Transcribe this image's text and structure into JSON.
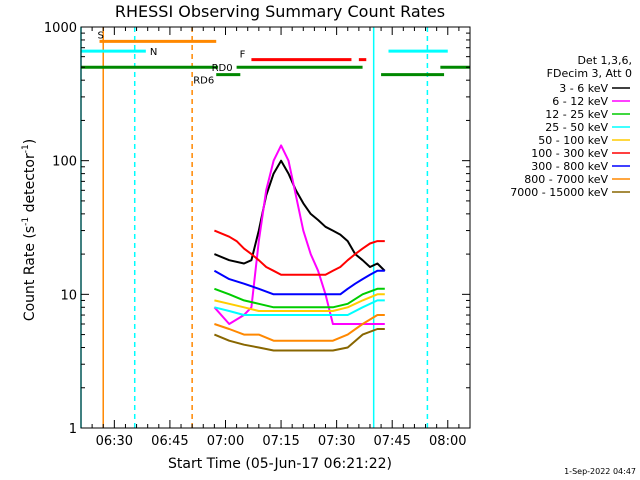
{
  "chart_data": {
    "type": "line",
    "title": "RHESSI Observing Summary Count Rates",
    "xlabel": "Start Time (05-Jun-17 06:21:22)",
    "ylabel_main": "Count Rate (s",
    "ylabel_sup1": "-1",
    "ylabel_mid": " detector",
    "ylabel_sup2": "-1",
    "ylabel_end": ")",
    "ylog": true,
    "x_range_min": [
      0,
      105
    ],
    "ylim": [
      1,
      1000
    ],
    "x_ticks": [
      {
        "label": "06:30",
        "min": 9
      },
      {
        "label": "06:45",
        "min": 24
      },
      {
        "label": "07:00",
        "min": 39
      },
      {
        "label": "07:15",
        "min": 54
      },
      {
        "label": "07:30",
        "min": 69
      },
      {
        "label": "07:45",
        "min": 84
      },
      {
        "label": "08:00",
        "min": 99
      }
    ],
    "y_ticks": [
      {
        "label": "1",
        "value": 1
      },
      {
        "label": "10",
        "value": 10
      },
      {
        "label": "100",
        "value": 100
      },
      {
        "label": "1000",
        "value": 1000
      }
    ],
    "legend_header": [
      "Det 1,3,6,",
      "FDecim 3, Att 0"
    ],
    "legend_position": "right",
    "series": [
      {
        "name": "3 - 6 keV",
        "color": "#000000",
        "values": [
          [
            36,
            20
          ],
          [
            40,
            18
          ],
          [
            44,
            17
          ],
          [
            46,
            18
          ],
          [
            48,
            30
          ],
          [
            50,
            55
          ],
          [
            52,
            80
          ],
          [
            54,
            100
          ],
          [
            56,
            80
          ],
          [
            58,
            60
          ],
          [
            60,
            48
          ],
          [
            62,
            40
          ],
          [
            64,
            36
          ],
          [
            66,
            32
          ],
          [
            68,
            30
          ],
          [
            70,
            28
          ],
          [
            72,
            25
          ],
          [
            74,
            20
          ],
          [
            76,
            18
          ],
          [
            78,
            16
          ],
          [
            80,
            17
          ],
          [
            82,
            15
          ]
        ]
      },
      {
        "name": "6 - 12 keV",
        "color": "#ff00ff",
        "values": [
          [
            36,
            8
          ],
          [
            40,
            6
          ],
          [
            44,
            7
          ],
          [
            46,
            8
          ],
          [
            48,
            25
          ],
          [
            50,
            60
          ],
          [
            52,
            100
          ],
          [
            54,
            130
          ],
          [
            56,
            100
          ],
          [
            58,
            55
          ],
          [
            60,
            30
          ],
          [
            62,
            20
          ],
          [
            64,
            15
          ],
          [
            66,
            10
          ],
          [
            68,
            6
          ],
          [
            70,
            6
          ],
          [
            72,
            6
          ],
          [
            74,
            6
          ],
          [
            76,
            6
          ],
          [
            78,
            6
          ],
          [
            80,
            6
          ],
          [
            82,
            6
          ]
        ]
      },
      {
        "name": "12 - 25 keV",
        "color": "#00cc00",
        "values": [
          [
            36,
            11
          ],
          [
            40,
            10
          ],
          [
            44,
            9
          ],
          [
            48,
            8.5
          ],
          [
            52,
            8
          ],
          [
            56,
            8
          ],
          [
            60,
            8
          ],
          [
            64,
            8
          ],
          [
            68,
            8
          ],
          [
            72,
            8.5
          ],
          [
            76,
            10
          ],
          [
            80,
            11
          ],
          [
            82,
            11
          ]
        ]
      },
      {
        "name": "25 - 50 keV",
        "color": "#00ffff",
        "values": [
          [
            36,
            8
          ],
          [
            40,
            7.5
          ],
          [
            44,
            7
          ],
          [
            48,
            7
          ],
          [
            52,
            7
          ],
          [
            56,
            7
          ],
          [
            60,
            7
          ],
          [
            64,
            7
          ],
          [
            68,
            7
          ],
          [
            72,
            7
          ],
          [
            76,
            8
          ],
          [
            80,
            9
          ],
          [
            82,
            9
          ]
        ]
      },
      {
        "name": "50 - 100 keV",
        "color": "#ffcc00",
        "values": [
          [
            36,
            9
          ],
          [
            40,
            8.5
          ],
          [
            44,
            8
          ],
          [
            48,
            7.5
          ],
          [
            52,
            7.5
          ],
          [
            56,
            7.5
          ],
          [
            60,
            7.5
          ],
          [
            64,
            7.5
          ],
          [
            68,
            7.5
          ],
          [
            72,
            8
          ],
          [
            76,
            9
          ],
          [
            80,
            10
          ],
          [
            82,
            10
          ]
        ]
      },
      {
        "name": "100 - 300 keV",
        "color": "#ff0000",
        "values": [
          [
            36,
            30
          ],
          [
            40,
            27
          ],
          [
            42,
            25
          ],
          [
            44,
            22
          ],
          [
            46,
            20
          ],
          [
            48,
            18
          ],
          [
            50,
            16
          ],
          [
            52,
            15
          ],
          [
            54,
            14
          ],
          [
            58,
            14
          ],
          [
            62,
            14
          ],
          [
            66,
            14
          ],
          [
            68,
            15
          ],
          [
            70,
            16
          ],
          [
            72,
            18
          ],
          [
            74,
            20
          ],
          [
            76,
            22
          ],
          [
            78,
            24
          ],
          [
            80,
            25
          ],
          [
            82,
            25
          ]
        ]
      },
      {
        "name": "300 - 800 keV",
        "color": "#0000ff",
        "values": [
          [
            36,
            15
          ],
          [
            40,
            13
          ],
          [
            44,
            12
          ],
          [
            48,
            11
          ],
          [
            52,
            10
          ],
          [
            56,
            10
          ],
          [
            60,
            10
          ],
          [
            64,
            10
          ],
          [
            68,
            10
          ],
          [
            70,
            10
          ],
          [
            72,
            11
          ],
          [
            74,
            12
          ],
          [
            76,
            13
          ],
          [
            78,
            14
          ],
          [
            80,
            15
          ],
          [
            82,
            15
          ]
        ]
      },
      {
        "name": "800 - 7000 keV",
        "color": "#ff8800",
        "values": [
          [
            36,
            6
          ],
          [
            40,
            5.5
          ],
          [
            44,
            5
          ],
          [
            48,
            5
          ],
          [
            52,
            4.5
          ],
          [
            56,
            4.5
          ],
          [
            60,
            4.5
          ],
          [
            64,
            4.5
          ],
          [
            68,
            4.5
          ],
          [
            72,
            5
          ],
          [
            76,
            6
          ],
          [
            80,
            7
          ],
          [
            82,
            7
          ]
        ]
      },
      {
        "name": "7000 - 15000 keV",
        "color": "#886600",
        "values": [
          [
            36,
            5
          ],
          [
            40,
            4.5
          ],
          [
            44,
            4.2
          ],
          [
            48,
            4
          ],
          [
            52,
            3.8
          ],
          [
            56,
            3.8
          ],
          [
            60,
            3.8
          ],
          [
            64,
            3.8
          ],
          [
            68,
            3.8
          ],
          [
            72,
            4
          ],
          [
            76,
            5
          ],
          [
            80,
            5.5
          ],
          [
            82,
            5.5
          ]
        ]
      }
    ],
    "annotations": {
      "S": {
        "label": "S",
        "color": "#ff8800",
        "y": 780,
        "segments": [
          [
            5,
            36.5
          ]
        ]
      },
      "N": {
        "label": "N",
        "color": "#00ffff",
        "y": 660,
        "segments": [
          [
            0,
            17.5
          ],
          [
            83,
            99
          ]
        ]
      },
      "F": {
        "label": "F",
        "color": "#ff0000",
        "y": 570,
        "segments": [
          [
            46,
            73
          ],
          [
            75,
            77
          ]
        ]
      },
      "RD0": {
        "label": "RD0",
        "color": "#008800",
        "y": 500,
        "segments": [
          [
            0,
            37
          ],
          [
            42,
            76
          ],
          [
            97,
            105
          ]
        ]
      },
      "RD6": {
        "label": "RD6",
        "color": "#008800",
        "y": 440,
        "segments": [
          [
            36.5,
            43
          ],
          [
            81,
            98
          ]
        ]
      }
    },
    "vlines": [
      {
        "x": 0,
        "color": "#00ffff",
        "style": "solid"
      },
      {
        "x": 6,
        "color": "#ff8800",
        "style": "solid"
      },
      {
        "x": 14.5,
        "color": "#00ffff",
        "style": "dashed"
      },
      {
        "x": 30,
        "color": "#ff8800",
        "style": "dashed"
      },
      {
        "x": 79,
        "color": "#00ffff",
        "style": "solid"
      },
      {
        "x": 93.5,
        "color": "#00ffff",
        "style": "dashed"
      }
    ],
    "grid": false,
    "footer": "1-Sep-2022 04:47"
  }
}
